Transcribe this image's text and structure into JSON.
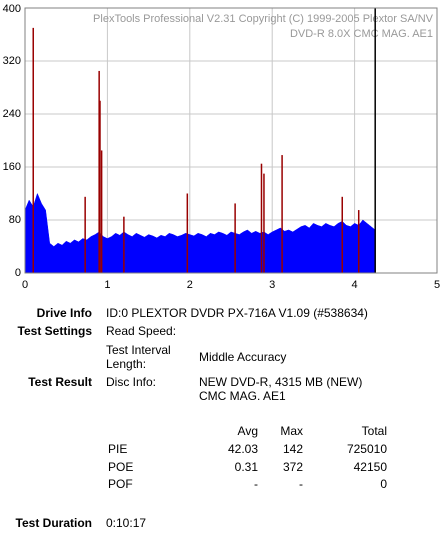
{
  "chart_data": {
    "type": "area",
    "title": "PlexTools Professional V2.31 Copyright (C) 1999-2005 Plextor SA/NV",
    "subtitle": "DVD-R  8.0X  CMC MAG. AE1",
    "xlim": [
      0,
      5
    ],
    "xticks": [
      0,
      1,
      2,
      3,
      4,
      5
    ],
    "ylim": [
      0,
      400
    ],
    "yticks": [
      0,
      80,
      160,
      240,
      320,
      400
    ],
    "grid": true,
    "end_marker": 4.25,
    "series": [
      {
        "color": "#0000ff",
        "x": [
          0,
          0.05,
          0.1,
          0.15,
          0.2,
          0.25,
          0.3,
          0.35,
          0.4,
          0.45,
          0.5,
          0.55,
          0.6,
          0.65,
          0.7,
          0.75,
          0.8,
          0.85,
          0.9,
          0.95,
          1,
          1.05,
          1.1,
          1.15,
          1.2,
          1.25,
          1.3,
          1.35,
          1.4,
          1.45,
          1.5,
          1.55,
          1.6,
          1.65,
          1.7,
          1.75,
          1.8,
          1.85,
          1.9,
          1.95,
          2,
          2.05,
          2.1,
          2.15,
          2.2,
          2.25,
          2.3,
          2.35,
          2.4,
          2.45,
          2.5,
          2.55,
          2.6,
          2.65,
          2.7,
          2.75,
          2.8,
          2.85,
          2.9,
          2.95,
          3,
          3.05,
          3.1,
          3.15,
          3.2,
          3.25,
          3.3,
          3.35,
          3.4,
          3.45,
          3.5,
          3.55,
          3.6,
          3.65,
          3.7,
          3.75,
          3.8,
          3.85,
          3.9,
          3.95,
          4,
          4.05,
          4.1,
          4.15,
          4.2,
          4.25
        ],
        "values": [
          95,
          110,
          100,
          120,
          105,
          95,
          45,
          40,
          45,
          42,
          48,
          45,
          50,
          47,
          52,
          50,
          55,
          58,
          62,
          55,
          52,
          55,
          60,
          57,
          62,
          58,
          55,
          60,
          57,
          54,
          58,
          56,
          53,
          57,
          55,
          60,
          58,
          55,
          57,
          60,
          58,
          56,
          60,
          58,
          55,
          60,
          58,
          62,
          60,
          57,
          62,
          60,
          58,
          62,
          65,
          60,
          63,
          60,
          62,
          58,
          62,
          65,
          68,
          63,
          65,
          62,
          66,
          70,
          72,
          68,
          75,
          72,
          70,
          75,
          72,
          70,
          75,
          78,
          72,
          70,
          75,
          72,
          80,
          75,
          70,
          65
        ]
      },
      {
        "type": "bar",
        "color": "#990000",
        "x": [
          0.1,
          0.73,
          0.9,
          0.91,
          0.93,
          1.2,
          1.97,
          2.55,
          2.87,
          2.9,
          3.12,
          3.85,
          4.05
        ],
        "values": [
          370,
          115,
          305,
          260,
          185,
          85,
          120,
          105,
          165,
          150,
          178,
          115,
          95
        ]
      }
    ]
  },
  "report": {
    "drive_info": {
      "label": "Drive Info",
      "value": "ID:0 PLEXTOR DVDR PX-716A V1.09 (#538634)"
    },
    "test_settings": {
      "label": "Test Settings",
      "read_speed": "Read Speed:",
      "interval_label": "Test Interval Length:",
      "interval_value": "Middle Accuracy"
    },
    "test_result": {
      "label": "Test Result",
      "disc_label": "Disc Info:",
      "disc_lines": [
        "NEW DVD-R, 4315 MB (NEW)",
        "CMC MAG. AE1"
      ]
    },
    "table": {
      "header": [
        "Avg",
        "Max",
        "Total"
      ],
      "rows": [
        [
          "PIE",
          42.03,
          142,
          725010
        ],
        [
          "POE",
          0.31,
          372,
          42150
        ],
        [
          "POF",
          "-",
          "-",
          0
        ]
      ]
    },
    "test_duration": {
      "label": "Test Duration",
      "value": "0:10:17"
    }
  }
}
